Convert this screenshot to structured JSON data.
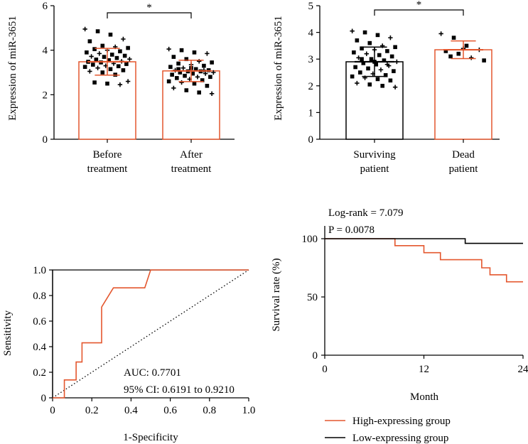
{
  "colors": {
    "orange": "#e4572e",
    "black": "#000000"
  },
  "chart_data": [
    {
      "type": "bar",
      "ylabel": "Expression of miR-3651",
      "ylim": [
        0,
        6
      ],
      "yticks": [
        "0",
        "2",
        "4",
        "6"
      ],
      "categories": [
        "Before\ntreatment",
        "After\ntreatment"
      ],
      "values": [
        3.48,
        3.07
      ],
      "sd": [
        0.6,
        0.48
      ],
      "bar_colors": [
        "#e4572e",
        "#e4572e"
      ],
      "significance": "*",
      "points": [
        [
          4.95,
          4.85,
          4.7,
          4.5,
          4.4,
          4.2,
          4.15,
          4.1,
          4.05,
          4.0,
          3.95,
          3.9,
          3.85,
          3.8,
          3.75,
          3.72,
          3.7,
          3.65,
          3.6,
          3.58,
          3.55,
          3.5,
          3.48,
          3.45,
          3.4,
          3.38,
          3.35,
          3.3,
          3.28,
          3.25,
          3.2,
          3.15,
          3.1,
          3.05,
          3.0,
          2.9,
          2.6,
          2.55,
          2.5,
          2.45
        ],
        [
          4.05,
          4.0,
          3.9,
          3.85,
          3.7,
          3.6,
          3.5,
          3.45,
          3.4,
          3.35,
          3.3,
          3.25,
          3.2,
          3.15,
          3.1,
          3.1,
          3.05,
          3.05,
          3.0,
          3.0,
          2.95,
          2.95,
          2.9,
          2.85,
          2.8,
          2.8,
          2.75,
          2.7,
          2.65,
          2.6,
          2.55,
          2.5,
          2.4,
          2.3,
          2.2,
          2.1,
          2.05,
          3.15,
          3.2,
          3.1
        ]
      ]
    },
    {
      "type": "bar",
      "ylabel": "Expression of miR-3651",
      "ylim": [
        0,
        5
      ],
      "yticks": [
        "0",
        "1",
        "2",
        "3",
        "4",
        "5"
      ],
      "categories": [
        "Surviving\npatient",
        "Dead\npatient"
      ],
      "values": [
        2.9,
        3.35
      ],
      "sd": [
        0.55,
        0.33
      ],
      "bar_colors": [
        "#000000",
        "#e4572e"
      ],
      "significance": "*",
      "points": [
        [
          4.05,
          4.0,
          3.9,
          3.8,
          3.7,
          3.6,
          3.5,
          3.45,
          3.4,
          3.35,
          3.3,
          3.25,
          3.2,
          3.15,
          3.1,
          3.05,
          3.0,
          2.95,
          2.9,
          2.85,
          2.8,
          2.75,
          2.7,
          2.65,
          2.6,
          2.55,
          2.5,
          2.45,
          2.4,
          2.35,
          2.3,
          2.25,
          2.2,
          2.1,
          2.05,
          2.0,
          1.95,
          3.0,
          2.9,
          2.8
        ],
        [
          3.95,
          3.8,
          3.5,
          3.35,
          3.3,
          3.2,
          3.05,
          2.95,
          3.1,
          3.4
        ]
      ]
    },
    {
      "type": "line",
      "subtype": "roc",
      "xlabel": "1-Specificity",
      "ylabel": "Sensitivity",
      "xlim": [
        0,
        1
      ],
      "ylim": [
        0,
        1
      ],
      "xticks": [
        "0",
        "0.2",
        "0.4",
        "0.6",
        "0.8",
        "1.0"
      ],
      "yticks": [
        "0",
        "0.2",
        "0.4",
        "0.6",
        "0.8",
        "1.0"
      ],
      "roc": [
        [
          0,
          0
        ],
        [
          0.06,
          0
        ],
        [
          0.06,
          0.14
        ],
        [
          0.12,
          0.14
        ],
        [
          0.12,
          0.28
        ],
        [
          0.15,
          0.28
        ],
        [
          0.15,
          0.43
        ],
        [
          0.25,
          0.43
        ],
        [
          0.25,
          0.71
        ],
        [
          0.31,
          0.86
        ],
        [
          0.47,
          0.86
        ],
        [
          0.5,
          1
        ],
        [
          1,
          1
        ]
      ],
      "annotations": [
        "AUC: 0.7701",
        "95% CI: 0.6191 to 0.9210"
      ]
    },
    {
      "type": "line",
      "subtype": "kaplan-meier",
      "xlabel": "Month",
      "ylabel": "Survival rate (%)",
      "xlim": [
        0,
        24
      ],
      "ylim": [
        0,
        100
      ],
      "xticks": [
        "0",
        "12",
        "24"
      ],
      "yticks": [
        "0",
        "50",
        "100"
      ],
      "stats": [
        "Log-rank = 7.079",
        "P = 0.0078"
      ],
      "series": [
        {
          "name": "High-expressing group",
          "color": "#e4572e",
          "steps": [
            [
              0,
              100
            ],
            [
              8.5,
              94
            ],
            [
              12,
              88
            ],
            [
              14,
              82
            ],
            [
              19,
              75
            ],
            [
              20,
              69
            ],
            [
              22,
              63
            ],
            [
              24,
              63
            ]
          ]
        },
        {
          "name": "Low-expressing group",
          "color": "#000000",
          "steps": [
            [
              0,
              100
            ],
            [
              17,
              96
            ],
            [
              24,
              96
            ]
          ]
        }
      ]
    }
  ]
}
